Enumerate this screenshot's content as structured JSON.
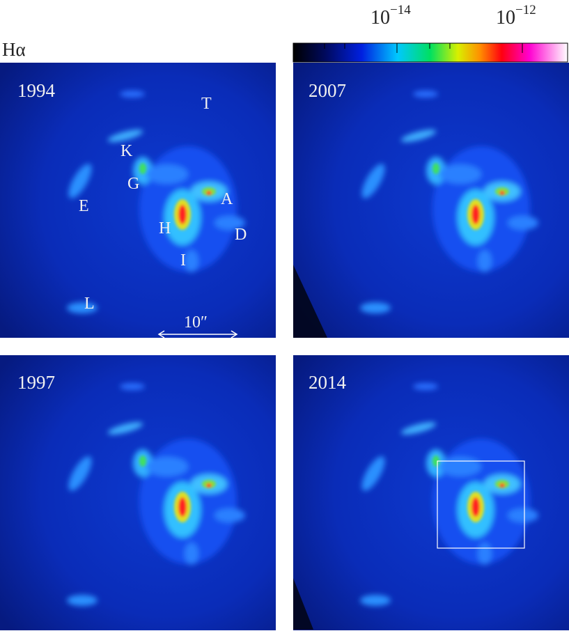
{
  "band_label": "Hα",
  "colorbar": {
    "labels": [
      {
        "base": "10",
        "exponent": "−14"
      },
      {
        "base": "10",
        "exponent": "−12"
      }
    ]
  },
  "panels": [
    {
      "year": "1994"
    },
    {
      "year": "2007"
    },
    {
      "year": "1997"
    },
    {
      "year": "2014"
    }
  ],
  "knots": [
    "T",
    "K",
    "G",
    "E",
    "A",
    "H",
    "D",
    "I",
    "L"
  ],
  "scale_bar": "10″"
}
